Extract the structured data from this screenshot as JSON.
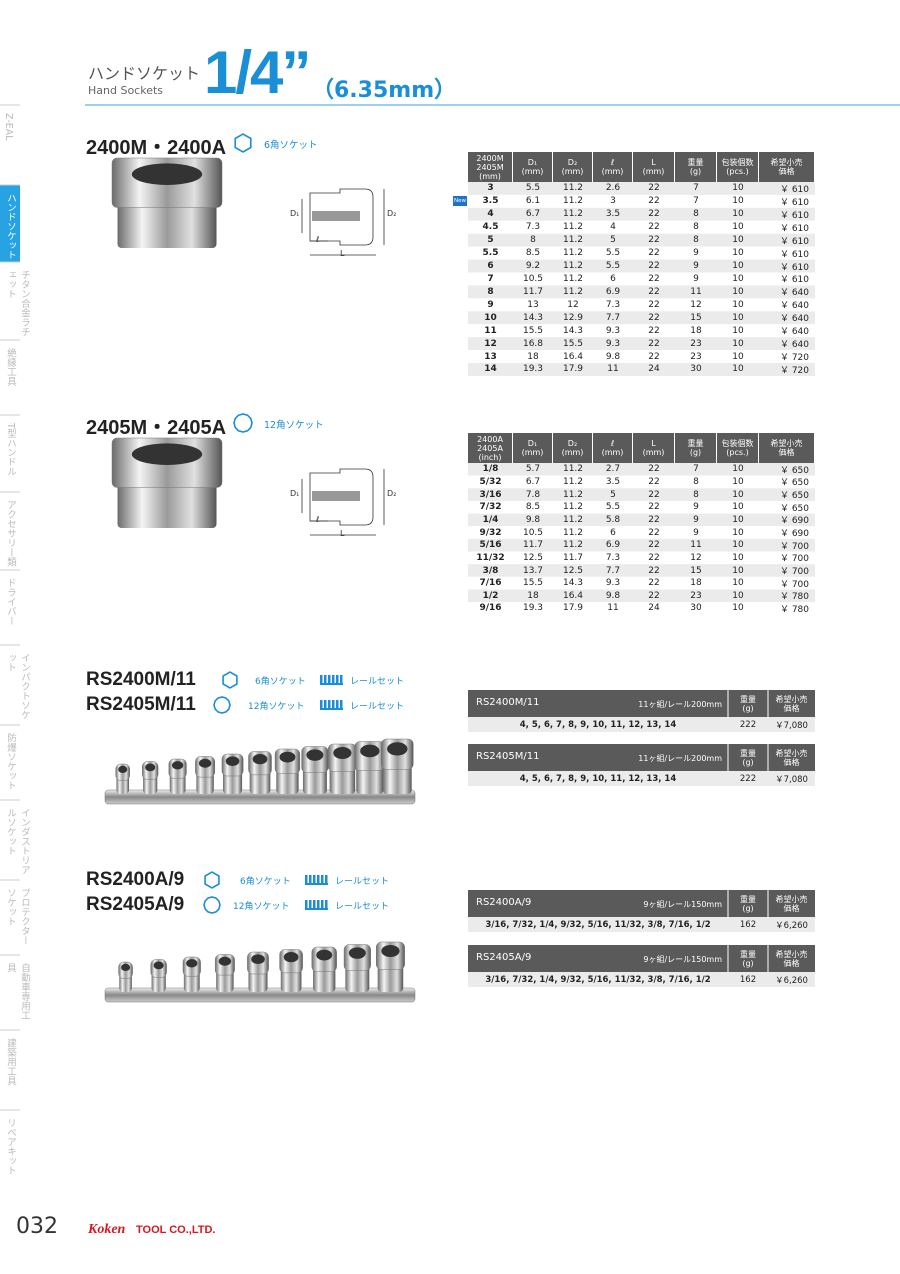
{
  "header": {
    "title_jp": "ハンドソケット",
    "title_en": "Hand Sockets",
    "size": "1/4”",
    "size_mm": "（6.35mm）"
  },
  "sidebar": {
    "tabs": [
      "Z-EAL",
      "ハンドソケット",
      "チタン合金ラチェット",
      "絶縁工具",
      "T型ハンドル",
      "アクセサリー類",
      "ドライバー",
      "インパクトソケット",
      "防爆ソケット",
      "インダストリアルソケット",
      "プロテクターソケット",
      "自動車専用工具",
      "建築用工具",
      "リペアキット"
    ]
  },
  "sections": [
    {
      "title": "2400M・2400A",
      "icon_label": "6角ソケット",
      "diagram": [
        "D₁",
        "D₂",
        "ℓ",
        "L"
      ],
      "new_badge": "New",
      "table": {
        "header": [
          "2400M\n2405M\n(mm)",
          "D₁\n(mm)",
          "D₂\n(mm)",
          "ℓ\n(mm)",
          "L\n(mm)",
          "重量\n(g)",
          "包装個数\n(pcs.)",
          "希望小売\n価格"
        ],
        "rows": [
          [
            "3",
            "5.5",
            "11.2",
            "2.6",
            "22",
            "7",
            "10",
            "￥ 610"
          ],
          [
            "3.5",
            "6.1",
            "11.2",
            "3",
            "22",
            "7",
            "10",
            "￥ 610"
          ],
          [
            "4",
            "6.7",
            "11.2",
            "3.5",
            "22",
            "8",
            "10",
            "￥ 610"
          ],
          [
            "4.5",
            "7.3",
            "11.2",
            "4",
            "22",
            "8",
            "10",
            "￥ 610"
          ],
          [
            "5",
            "8",
            "11.2",
            "5",
            "22",
            "8",
            "10",
            "￥ 610"
          ],
          [
            "5.5",
            "8.5",
            "11.2",
            "5.5",
            "22",
            "9",
            "10",
            "￥ 610"
          ],
          [
            "6",
            "9.2",
            "11.2",
            "5.5",
            "22",
            "9",
            "10",
            "￥ 610"
          ],
          [
            "7",
            "10.5",
            "11.2",
            "6",
            "22",
            "9",
            "10",
            "￥ 610"
          ],
          [
            "8",
            "11.7",
            "11.2",
            "6.9",
            "22",
            "11",
            "10",
            "￥ 640"
          ],
          [
            "9",
            "13",
            "12",
            "7.3",
            "22",
            "12",
            "10",
            "￥ 640"
          ],
          [
            "10",
            "14.3",
            "12.9",
            "7.7",
            "22",
            "15",
            "10",
            "￥ 640"
          ],
          [
            "11",
            "15.5",
            "14.3",
            "9.3",
            "22",
            "18",
            "10",
            "￥ 640"
          ],
          [
            "12",
            "16.8",
            "15.5",
            "9.3",
            "22",
            "23",
            "10",
            "￥ 640"
          ],
          [
            "13",
            "18",
            "16.4",
            "9.8",
            "22",
            "23",
            "10",
            "￥ 720"
          ],
          [
            "14",
            "19.3",
            "17.9",
            "11",
            "24",
            "30",
            "10",
            "￥ 720"
          ]
        ]
      }
    },
    {
      "title": "2405M・2405A",
      "icon_label": "12角ソケット",
      "diagram": [
        "D₁",
        "D₂",
        "ℓ",
        "L"
      ],
      "table": {
        "header": [
          "2400A\n2405A\n(inch)",
          "D₁\n(mm)",
          "D₂\n(mm)",
          "ℓ\n(mm)",
          "L\n(mm)",
          "重量\n(g)",
          "包装個数\n(pcs.)",
          "希望小売\n価格"
        ],
        "rows": [
          [
            "1/8",
            "5.7",
            "11.2",
            "2.7",
            "22",
            "7",
            "10",
            "￥ 650"
          ],
          [
            "5/32",
            "6.7",
            "11.2",
            "3.5",
            "22",
            "8",
            "10",
            "￥ 650"
          ],
          [
            "3/16",
            "7.8",
            "11.2",
            "5",
            "22",
            "8",
            "10",
            "￥ 650"
          ],
          [
            "7/32",
            "8.5",
            "11.2",
            "5.5",
            "22",
            "9",
            "10",
            "￥ 650"
          ],
          [
            "1/4",
            "9.8",
            "11.2",
            "5.8",
            "22",
            "9",
            "10",
            "￥ 690"
          ],
          [
            "9/32",
            "10.5",
            "11.2",
            "6",
            "22",
            "9",
            "10",
            "￥ 690"
          ],
          [
            "5/16",
            "11.7",
            "11.2",
            "6.9",
            "22",
            "11",
            "10",
            "￥ 700"
          ],
          [
            "11/32",
            "12.5",
            "11.7",
            "7.3",
            "22",
            "12",
            "10",
            "￥ 700"
          ],
          [
            "3/8",
            "13.7",
            "12.5",
            "7.7",
            "22",
            "15",
            "10",
            "￥ 700"
          ],
          [
            "7/16",
            "15.5",
            "14.3",
            "9.3",
            "22",
            "18",
            "10",
            "￥ 700"
          ],
          [
            "1/2",
            "18",
            "16.4",
            "9.8",
            "22",
            "23",
            "10",
            "￥ 780"
          ],
          [
            "9/16",
            "19.3",
            "17.9",
            "11",
            "24",
            "30",
            "10",
            "￥ 780"
          ]
        ]
      }
    }
  ],
  "sets": [
    {
      "titles": [
        "RS2400M/11",
        "RS2405M/11"
      ],
      "legend": [
        [
          "6角ソケット",
          "レールセット"
        ],
        [
          "12角ソケット",
          "レールセット"
        ]
      ],
      "tables": [
        {
          "name": "RS2400M/11",
          "desc": "11ヶ組/レール200mm",
          "header": [
            "重量\n(g)",
            "希望小売\n価格"
          ],
          "row": [
            "4, 5, 6, 7, 8, 9, 10, 11, 12, 13, 14",
            "222",
            "￥7,080"
          ]
        },
        {
          "name": "RS2405M/11",
          "desc": "11ヶ組/レール200mm",
          "header": [
            "重量\n(g)",
            "希望小売\n価格"
          ],
          "row": [
            "4, 5, 6, 7, 8, 9, 10, 11, 12, 13, 14",
            "222",
            "￥7,080"
          ]
        }
      ]
    },
    {
      "titles": [
        "RS2400A/9",
        "RS2405A/9"
      ],
      "legend": [
        [
          "6角ソケット",
          "レールセット"
        ],
        [
          "12角ソケット",
          "レールセット"
        ]
      ],
      "tables": [
        {
          "name": "RS2400A/9",
          "desc": "9ヶ組/レール150mm",
          "header": [
            "重量\n(g)",
            "希望小売\n価格"
          ],
          "row": [
            "3/16, 7/32, 1/4, 9/32, 5/16, 11/32, 3/8, 7/16, 1/2",
            "162",
            "￥6,260"
          ]
        },
        {
          "name": "RS2405A/9",
          "desc": "9ヶ組/レール150mm",
          "header": [
            "重量\n(g)",
            "希望小売\n価格"
          ],
          "row": [
            "3/16, 7/32, 1/4, 9/32, 5/16, 11/32, 3/8, 7/16, 1/2",
            "162",
            "￥6,260"
          ]
        }
      ]
    }
  ],
  "footer": {
    "page": "032",
    "logo": "Koken",
    "company": "TOOL CO.,LTD."
  }
}
